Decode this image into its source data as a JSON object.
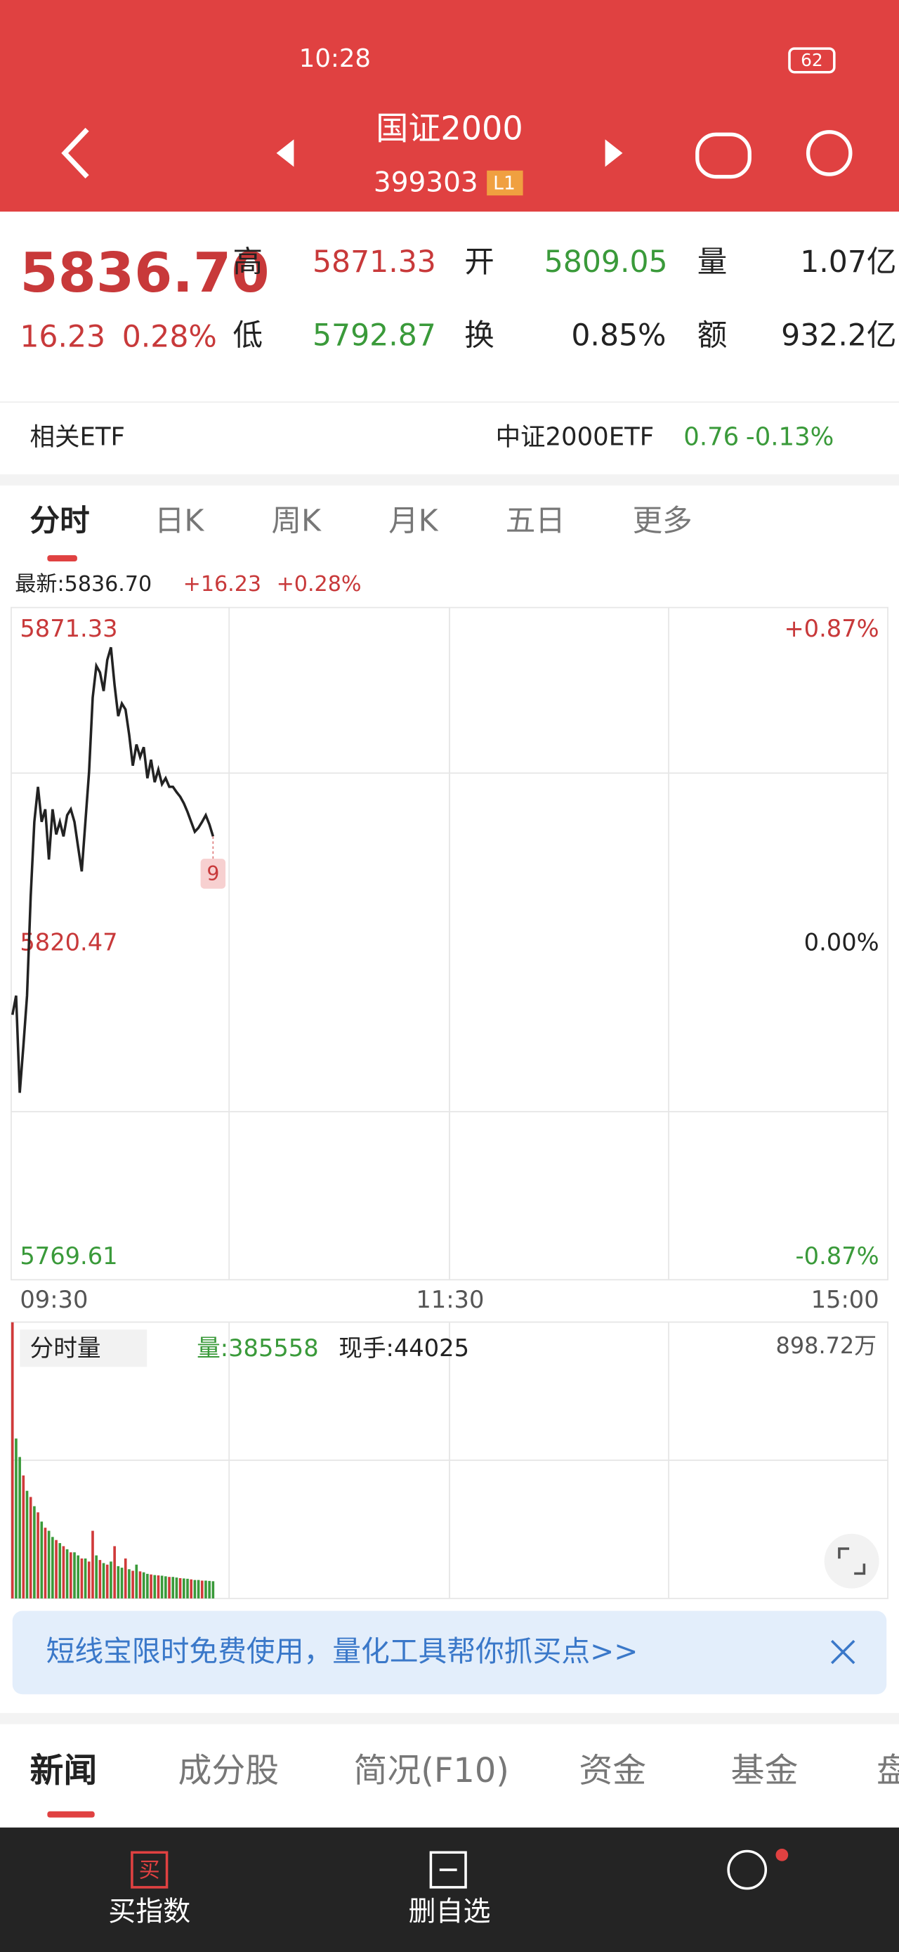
{
  "status": {
    "time": "10:28",
    "battery": "62"
  },
  "header": {
    "title": "国证2000",
    "code": "399303",
    "badge": "L1"
  },
  "quote": {
    "price": "5836.70",
    "change": "16.23",
    "change_pct": "0.28%",
    "high_label": "高",
    "high": "5871.33",
    "open_label": "开",
    "open": "5809.05",
    "volume_label": "量",
    "volume": "1.07亿",
    "low_label": "低",
    "low": "5792.87",
    "turnover_label": "换",
    "turnover": "0.85%",
    "amount_label": "额",
    "amount": "932.2亿"
  },
  "etf": {
    "label": "相关ETF",
    "name": "中证2000ETF",
    "price": "0.76",
    "change": "-0.13%"
  },
  "tabs": [
    "分时",
    "日K",
    "周K",
    "月K",
    "五日",
    "更多"
  ],
  "latest": {
    "price": "最新:5836.70",
    "change": "+16.23",
    "pct": "+0.28%"
  },
  "chart_data": [
    {
      "type": "line",
      "annotation": "9",
      "xlim": [
        0,
        240
      ],
      "xticks": [
        {
          "value": 0,
          "label": "09:30"
        },
        {
          "value": 120,
          "label": "11:30"
        },
        {
          "value": 240,
          "label": "15:00"
        }
      ],
      "ylim": [
        5769.61,
        5871.33
      ],
      "yticks": [
        5871.33,
        5820.47,
        5769.61
      ],
      "y2lim": [
        -0.87,
        0.87
      ],
      "y2ticks": [
        {
          "value": 0.87,
          "label": "+0.87%"
        },
        {
          "value": 0,
          "label": "0.00%"
        },
        {
          "value": -0.87,
          "label": "-0.87%"
        }
      ],
      "series": [
        {
          "color": "#222222",
          "values": [
            5809.7,
            5812.6,
            5797.9,
            5805.0,
            5812.6,
            5827.6,
            5838.9,
            5844.2,
            5838.9,
            5840.8,
            5833.2,
            5840.8,
            5837.0,
            5838.9,
            5836.7,
            5839.9,
            5840.8,
            5838.9,
            5835.1,
            5831.4,
            5838.9,
            5846.4,
            5857.7,
            5862.5,
            5861.5,
            5858.7,
            5863.4,
            5865.3,
            5859.6,
            5854.9,
            5856.8,
            5855.9,
            5852.1,
            5847.4,
            5850.6,
            5848.7,
            5850.2,
            5845.5,
            5848.3,
            5844.9,
            5846.8,
            5844.6,
            5845.5,
            5844.2,
            5844.2,
            5843.4,
            5842.7,
            5841.7,
            5840.4,
            5838.9,
            5837.4,
            5838.0,
            5838.9,
            5839.9,
            5838.5,
            5836.7
          ]
        }
      ]
    },
    {
      "type": "bar",
      "title": "分时量",
      "volume": "量:385558",
      "hand": "现手:44025",
      "xlim": [
        0,
        240
      ],
      "ylim": [
        0,
        898.72
      ],
      "yticks": [
        {
          "value": 898.72,
          "label": "898.72万"
        }
      ],
      "values": [
        898,
        520,
        460,
        400,
        350,
        330,
        300,
        280,
        250,
        230,
        220,
        200,
        190,
        180,
        170,
        160,
        150,
        150,
        140,
        130,
        130,
        120,
        220,
        140,
        125,
        115,
        110,
        120,
        170,
        105,
        100,
        130,
        95,
        90,
        110,
        88,
        85,
        80,
        78,
        76,
        75,
        74,
        72,
        70,
        70,
        68,
        66,
        65,
        64,
        62,
        60,
        60,
        58,
        58,
        57,
        56
      ],
      "colors": [
        "#d03a3a",
        "#3a9a3a",
        "#3a9a3a",
        "#d03a3a",
        "#3a9a3a",
        "#d03a3a",
        "#3a9a3a",
        "#d03a3a",
        "#3a9a3a",
        "#d03a3a",
        "#3a9a3a",
        "#3a9a3a",
        "#d03a3a",
        "#3a9a3a",
        "#d03a3a",
        "#3a9a3a",
        "#d03a3a",
        "#3a9a3a",
        "#3a9a3a",
        "#d03a3a",
        "#3a9a3a",
        "#d03a3a",
        "#d03a3a",
        "#3a9a3a",
        "#d03a3a",
        "#3a9a3a",
        "#d03a3a",
        "#3a9a3a",
        "#d03a3a",
        "#3a9a3a",
        "#3a9a3a",
        "#d03a3a",
        "#3a9a3a",
        "#d03a3a",
        "#3a9a3a",
        "#d03a3a",
        "#3a9a3a",
        "#3a9a3a",
        "#d03a3a",
        "#3a9a3a",
        "#d03a3a",
        "#3a9a3a",
        "#3a9a3a",
        "#d03a3a",
        "#3a9a3a",
        "#3a9a3a",
        "#d03a3a",
        "#3a9a3a",
        "#3a9a3a",
        "#d03a3a",
        "#3a9a3a",
        "#3a9a3a",
        "#d03a3a",
        "#3a9a3a",
        "#3a9a3a",
        "#3a9a3a"
      ]
    }
  ],
  "banner": "短线宝限时免费使用，量化工具帮你抓买点>>",
  "news_tabs": [
    "新闻",
    "成分股",
    "简况(F10)",
    "资金",
    "基金",
    "盘"
  ],
  "nav": [
    "买指数",
    "删自选"
  ],
  "nav_icon": "买"
}
